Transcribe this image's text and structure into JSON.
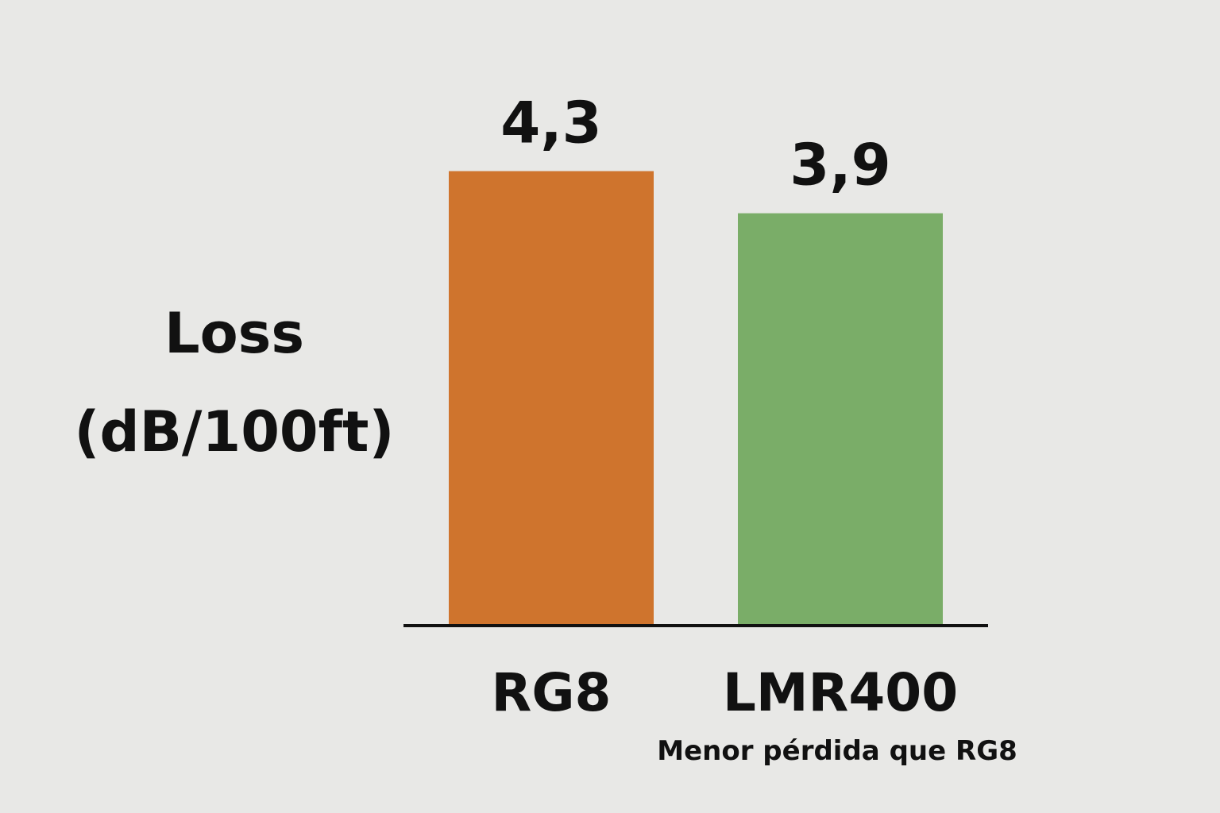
{
  "chart_data": {
    "type": "bar",
    "y_label": "Loss (dB/100ft)",
    "categories": [
      "RG8",
      "LMR400"
    ],
    "values": [
      4.3,
      3.9
    ],
    "value_labels": [
      "4,3",
      "3,9"
    ],
    "colors": [
      "#cf742d",
      "#7aad68"
    ],
    "annotation": "Menor pérdida que RG8",
    "ylim": [
      0,
      4.5
    ]
  }
}
